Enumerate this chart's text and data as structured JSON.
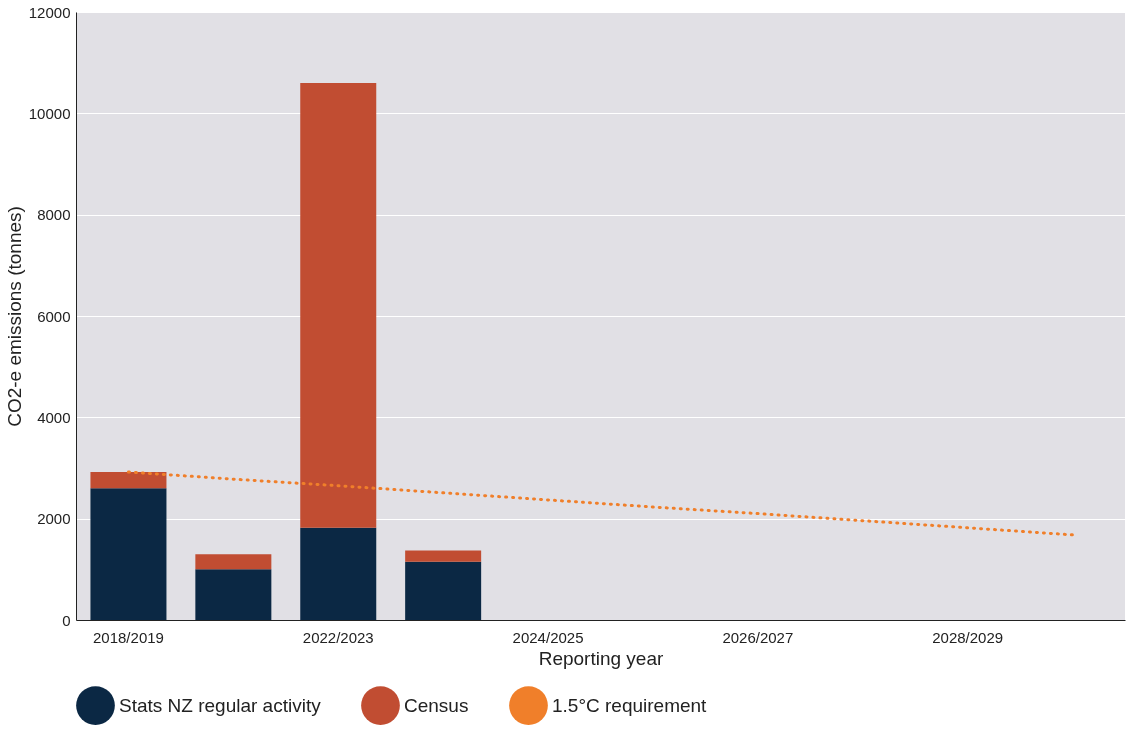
{
  "chart_data": {
    "type": "bar",
    "stacked": true,
    "xlabel": "Reporting year",
    "ylabel": "CO2-e emissions (tonnes)",
    "categories": [
      "2018/2019",
      null,
      "2022/2023",
      null,
      "2024/2025",
      null,
      "2026/2027",
      null,
      "2028/2029",
      null
    ],
    "series": [
      {
        "name": "Stats NZ regular activity",
        "color": "#0b2844",
        "values": [
          2600,
          1000,
          1820,
          1150,
          null,
          null,
          null,
          null,
          null,
          null
        ]
      },
      {
        "name": "Census",
        "color": "#c14d32",
        "values": [
          320,
          300,
          8780,
          220,
          null,
          null,
          null,
          null,
          null,
          null
        ]
      },
      {
        "name": "1.5°C requirement",
        "color": "#f07f2a",
        "type": "line",
        "line_style": "dotted",
        "values": [
          2920,
          2780,
          2650,
          2510,
          2370,
          2230,
          2100,
          1960,
          1820,
          1680
        ]
      }
    ],
    "ylim": [
      0,
      12000
    ],
    "yticks": [
      0,
      2000,
      4000,
      6000,
      8000,
      10000,
      12000
    ],
    "grid": "y",
    "legend": "bottom"
  }
}
